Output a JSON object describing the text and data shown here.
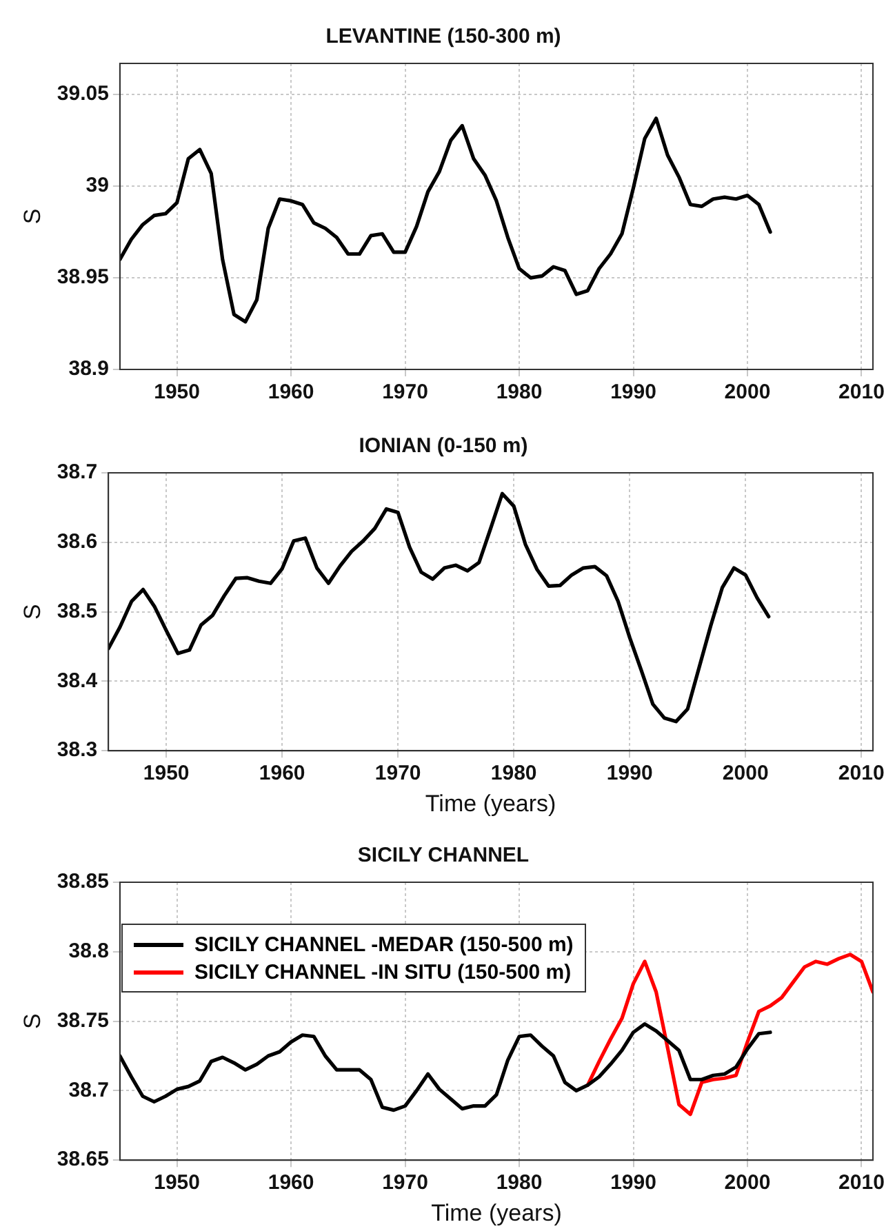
{
  "chart_data": [
    {
      "type": "line",
      "title": "LEVANTINE (150-300 m)",
      "ylabel": "S",
      "grid": true,
      "xlim": [
        1945,
        2011
      ],
      "xticks": [
        1950,
        1960,
        1970,
        1980,
        1990,
        2000,
        2010
      ],
      "ylim": [
        38.9,
        39.067
      ],
      "yticks": [
        38.9,
        38.95,
        {
          "value": 39,
          "label": "39"
        },
        39.05
      ],
      "x": [
        1945,
        1946,
        1947,
        1948,
        1949,
        1950,
        1951,
        1952,
        1953,
        1954,
        1955,
        1956,
        1957,
        1958,
        1959,
        1960,
        1961,
        1962,
        1963,
        1964,
        1965,
        1966,
        1967,
        1968,
        1969,
        1970,
        1971,
        1972,
        1973,
        1974,
        1975,
        1976,
        1977,
        1978,
        1979,
        1980,
        1981,
        1982,
        1983,
        1984,
        1985,
        1986,
        1987,
        1988,
        1989,
        1990,
        1991,
        1992,
        1993,
        1994,
        1995,
        1996,
        1997,
        1998,
        1999,
        2000,
        2001,
        2002
      ],
      "series": [
        {
          "color": "#000000",
          "values": [
            38.96,
            38.971,
            38.979,
            38.984,
            38.985,
            38.991,
            39.015,
            39.02,
            39.007,
            38.96,
            38.93,
            38.926,
            38.938,
            38.977,
            38.993,
            38.992,
            38.99,
            38.98,
            38.977,
            38.972,
            38.963,
            38.963,
            38.973,
            38.974,
            38.964,
            38.964,
            38.978,
            38.997,
            39.008,
            39.025,
            39.033,
            39.015,
            39.006,
            38.992,
            38.972,
            38.955,
            38.95,
            38.951,
            38.956,
            38.954,
            38.941,
            38.943,
            38.955,
            38.963,
            38.974,
            38.999,
            39.026,
            39.037,
            39.017,
            39.005,
            38.99,
            38.989,
            38.993,
            38.994,
            38.993,
            38.995,
            38.99,
            38.975
          ]
        }
      ]
    },
    {
      "type": "line",
      "title": "IONIAN (0-150 m)",
      "ylabel": "S",
      "xlabel": "Time (years)",
      "grid": true,
      "xlim": [
        1945,
        2011
      ],
      "xticks": [
        1950,
        1960,
        1970,
        1980,
        1990,
        2000,
        2010
      ],
      "ylim": [
        38.3,
        38.7
      ],
      "yticks": [
        38.3,
        38.4,
        38.5,
        38.6,
        38.7
      ],
      "x": [
        1945,
        1946,
        1947,
        1948,
        1949,
        1950,
        1951,
        1952,
        1953,
        1954,
        1955,
        1956,
        1957,
        1958,
        1959,
        1960,
        1961,
        1962,
        1963,
        1964,
        1965,
        1966,
        1967,
        1968,
        1969,
        1970,
        1971,
        1972,
        1973,
        1974,
        1975,
        1976,
        1977,
        1978,
        1979,
        1980,
        1981,
        1982,
        1983,
        1984,
        1985,
        1986,
        1987,
        1988,
        1989,
        1990,
        1991,
        1992,
        1993,
        1994,
        1995,
        1996,
        1997,
        1998,
        1999,
        2000,
        2001,
        2002
      ],
      "series": [
        {
          "color": "#000000",
          "values": [
            38.447,
            38.478,
            38.515,
            38.532,
            38.507,
            38.473,
            38.44,
            38.445,
            38.481,
            38.495,
            38.523,
            38.548,
            38.549,
            38.544,
            38.541,
            38.562,
            38.602,
            38.606,
            38.563,
            38.541,
            38.566,
            38.587,
            38.602,
            38.62,
            38.648,
            38.643,
            38.593,
            38.557,
            38.547,
            38.563,
            38.567,
            38.559,
            38.571,
            38.62,
            38.67,
            38.652,
            38.597,
            38.561,
            38.537,
            38.538,
            38.553,
            38.563,
            38.565,
            38.552,
            38.515,
            38.463,
            38.416,
            38.367,
            38.347,
            38.342,
            38.36,
            38.42,
            38.48,
            38.535,
            38.563,
            38.553,
            38.52,
            38.493
          ]
        }
      ]
    },
    {
      "type": "line",
      "title": "SICILY CHANNEL",
      "ylabel": "S",
      "xlabel": "Time (years)",
      "grid": true,
      "legend": "top left",
      "xlim": [
        1945,
        2011
      ],
      "xticks": [
        1950,
        1960,
        1970,
        1980,
        1990,
        2000,
        2010
      ],
      "ylim": [
        38.65,
        38.85
      ],
      "yticks": [
        38.65,
        {
          "value": 38.7,
          "label": "38.7"
        },
        38.75,
        {
          "value": 38.8,
          "label": "38.8"
        },
        38.85
      ],
      "series": [
        {
          "name": "SICILY CHANNEL -MEDAR (150-500 m)",
          "color": "#000000",
          "x": [
            1945,
            1946,
            1947,
            1948,
            1949,
            1950,
            1951,
            1952,
            1953,
            1954,
            1955,
            1956,
            1957,
            1958,
            1959,
            1960,
            1961,
            1962,
            1963,
            1964,
            1965,
            1966,
            1967,
            1968,
            1969,
            1970,
            1971,
            1972,
            1973,
            1974,
            1975,
            1976,
            1977,
            1978,
            1979,
            1980,
            1981,
            1982,
            1983,
            1984,
            1985,
            1986,
            1987,
            1988,
            1989,
            1990,
            1991,
            1992,
            1993,
            1994,
            1995,
            1996,
            1997,
            1998,
            1999,
            2000,
            2001,
            2002
          ],
          "values": [
            38.725,
            38.71,
            38.696,
            38.692,
            38.696,
            38.701,
            38.703,
            38.707,
            38.721,
            38.724,
            38.72,
            38.715,
            38.719,
            38.725,
            38.728,
            38.735,
            38.74,
            38.739,
            38.725,
            38.715,
            38.715,
            38.715,
            38.708,
            38.688,
            38.686,
            38.689,
            38.7,
            38.712,
            38.701,
            38.694,
            38.687,
            38.689,
            38.689,
            38.697,
            38.722,
            38.739,
            38.74,
            38.732,
            38.725,
            38.706,
            38.7,
            38.704,
            38.71,
            38.719,
            38.729,
            38.742,
            38.748,
            38.743,
            38.736,
            38.729,
            38.708,
            38.708,
            38.711,
            38.712,
            38.717,
            38.73,
            38.741,
            38.742
          ]
        },
        {
          "name": "SICILY CHANNEL -IN SITU (150-500 m)",
          "color": "#ff0000",
          "x": [
            1986,
            1987,
            1988,
            1989,
            1990,
            1991,
            1992,
            1993,
            1994,
            1995,
            1996,
            1997,
            1998,
            1999,
            2000,
            2001,
            2002,
            2003,
            2004,
            2005,
            2006,
            2007,
            2008,
            2009,
            2010,
            2011
          ],
          "values": [
            38.704,
            38.721,
            38.737,
            38.752,
            38.777,
            38.793,
            38.771,
            38.731,
            38.69,
            38.683,
            38.706,
            38.708,
            38.709,
            38.711,
            38.735,
            38.757,
            38.761,
            38.767,
            38.778,
            38.789,
            38.793,
            38.791,
            38.795,
            38.798,
            38.793,
            38.771
          ]
        }
      ]
    }
  ]
}
